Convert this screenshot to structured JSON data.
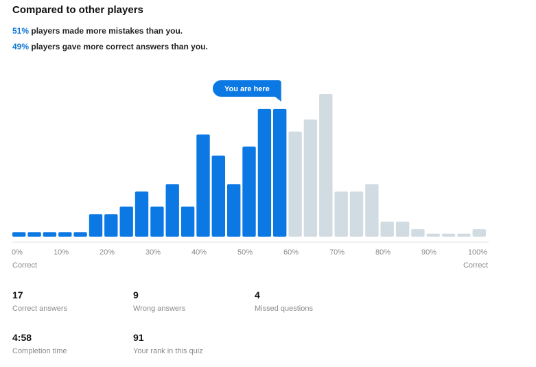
{
  "header": {
    "title": "Compared to other players"
  },
  "summary": {
    "mistakes": {
      "percent": "51%",
      "text": " players made more mistakes than you."
    },
    "correct": {
      "percent": "49%",
      "text": " players gave more correct answers than you."
    }
  },
  "chart_data": {
    "type": "bar",
    "marker_label": "You are here",
    "axis_ticks": [
      "0%",
      "10%",
      "20%",
      "30%",
      "40%",
      "50%",
      "60%",
      "70%",
      "80%",
      "90%",
      "100%"
    ],
    "axis_edge_labels": {
      "left": "Correct",
      "right": "Correct"
    },
    "values": [
      0.3,
      0.3,
      0.3,
      0.3,
      0.3,
      1.5,
      1.5,
      2,
      3,
      2,
      3.5,
      2,
      6.8,
      5.4,
      3.5,
      6,
      8.5,
      8.5,
      7,
      7.8,
      9.5,
      3,
      3,
      3.5,
      1,
      1,
      0.5,
      0.2,
      0.2,
      0.2,
      0.5
    ],
    "highlighted_count": 18,
    "colors": {
      "highlight": "#0b78e3",
      "other": "#d1dbe2",
      "axis": "#e2e2e2"
    },
    "grid": false,
    "legend": "none"
  },
  "stats": [
    {
      "value": "17",
      "label": "Correct answers"
    },
    {
      "value": "9",
      "label": "Wrong answers"
    },
    {
      "value": "4",
      "label": "Missed questions"
    },
    {
      "value": "4:58",
      "label": "Completion time"
    },
    {
      "value": "91",
      "label": "Your rank in this quiz"
    }
  ]
}
